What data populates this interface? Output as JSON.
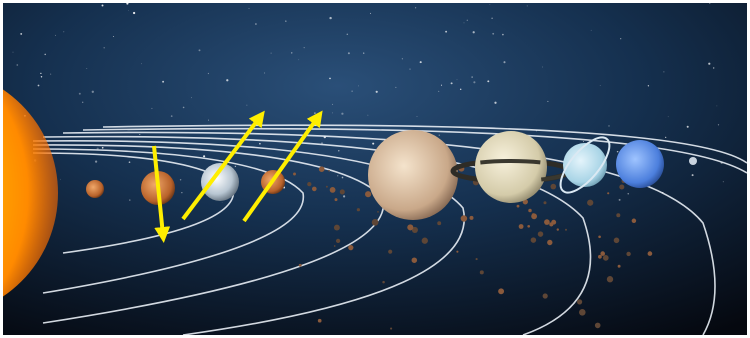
{
  "scene": {
    "subject": "solar-system",
    "colors": {
      "space_dark": "#05080f",
      "space_blue": "#1d3d63",
      "orbit_line": "#e8eef5",
      "arrow": "#ffee00",
      "sun_core": "#fff3a0",
      "sun_edge": "#ff8a00"
    },
    "bodies": [
      {
        "name": "sun",
        "icon": "sun-icon"
      },
      {
        "name": "mercury",
        "icon": "planet-icon"
      },
      {
        "name": "venus",
        "icon": "planet-icon"
      },
      {
        "name": "earth",
        "icon": "planet-icon"
      },
      {
        "name": "mars",
        "icon": "planet-icon"
      },
      {
        "name": "jupiter",
        "icon": "planet-icon"
      },
      {
        "name": "saturn",
        "icon": "ringed-planet-icon"
      },
      {
        "name": "uranus",
        "icon": "ringed-planet-icon"
      },
      {
        "name": "neptune",
        "icon": "planet-icon"
      },
      {
        "name": "pluto",
        "icon": "planet-icon"
      }
    ],
    "arrows": [
      {
        "name": "arrow-down",
        "direction": "down",
        "icon": "arrow-icon"
      },
      {
        "name": "arrow-up-right-1",
        "direction": "up-right",
        "icon": "arrow-icon"
      },
      {
        "name": "arrow-up-right-2",
        "direction": "up-right",
        "icon": "arrow-icon"
      }
    ]
  }
}
